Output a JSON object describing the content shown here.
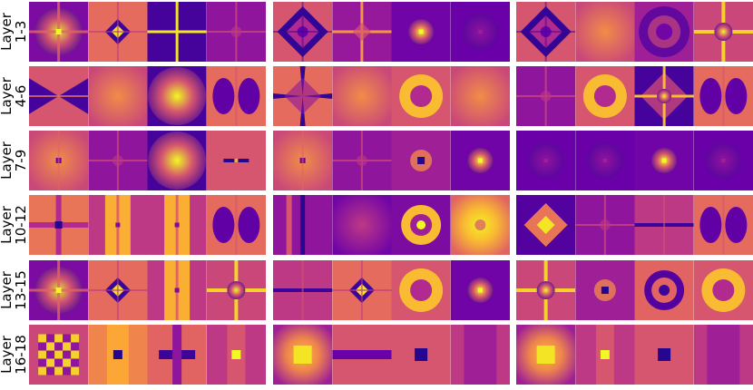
{
  "rows": [
    {
      "label": "Layer\n1-3"
    },
    {
      "label": "Layer\n4-6"
    },
    {
      "label": "Layer\n7-9"
    },
    {
      "label": "Layer\n10-12"
    },
    {
      "label": "Layer\n13-15"
    },
    {
      "label": "Layer\n16-18"
    }
  ],
  "colormap": "plasma",
  "colormap_stops": [
    "#0d0887",
    "#6a00a8",
    "#b12a90",
    "#e16462",
    "#fca636",
    "#f0f921"
  ],
  "tiles_per_group": 4,
  "groups_per_row": 3,
  "tiles": [
    [
      "cross-bright-center",
      "diamond-small",
      "plus-thin-bright",
      "plus-faint",
      "star-diamond-dark",
      "plus-lines",
      "point-bright",
      "faint-dark",
      "star-diamond-dark",
      "soft-orange",
      "noise-ring",
      "plus-bright-center"
    ],
    [
      "bowtie-dark",
      "soft-orange",
      "glow-bright",
      "lobes-dark",
      "star-dark-arms",
      "soft-orange",
      "ring-orange",
      "soft-orange",
      "plus-faint",
      "ring-orange",
      "star-bright",
      "lobes-dark"
    ],
    [
      "soft-orange-dot",
      "plus-faint",
      "glow-bright",
      "dash-dark",
      "soft-orange-dot",
      "plus-faint",
      "point-dark-square",
      "point-bright",
      "faint-dark",
      "faint-dark",
      "point-bright",
      "faint-dark"
    ],
    [
      "plus-dark-center",
      "vertical-bright",
      "vertical-bright",
      "lobes-dark",
      "vertical-dark-line",
      "soft-purple",
      "ring-bright",
      "glow-bright-large",
      "diamond-bright-dark",
      "plus-faint",
      "horizontal-dark",
      "lobes-dark"
    ],
    [
      "cross-bright-center",
      "diamond-small",
      "vertical-bright",
      "plus-bright-center",
      "horizontal-dark",
      "diamond-small",
      "ring-orange",
      "point-bright",
      "plus-bright-center",
      "point-dark-square",
      "ring-dark-concentric",
      "ring-orange"
    ],
    [
      "block-pattern",
      "block-dark-center",
      "block-plus",
      "block-bright-center",
      "block-glow",
      "block-horizontal",
      "block-dark-square",
      "block-faint",
      "block-glow",
      "block-bright-center",
      "block-dark-square",
      "block-faint"
    ]
  ]
}
